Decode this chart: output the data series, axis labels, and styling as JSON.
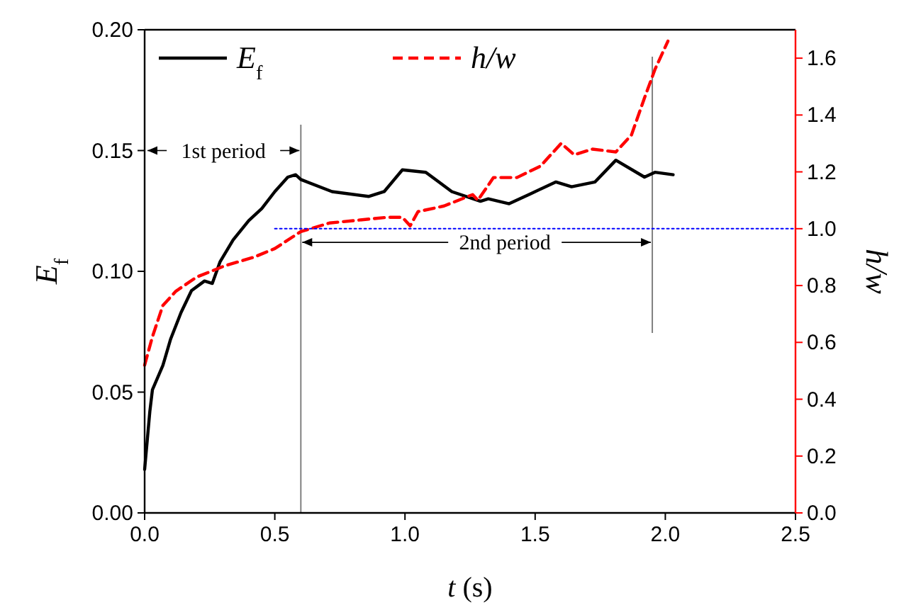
{
  "chart_data": {
    "type": "line",
    "xlabel": "t (s)",
    "ylabel": "E$_{f}$",
    "y2label": "h/w",
    "xlim": [
      0,
      2.5
    ],
    "xticks": [
      {
        "value": 0,
        "label": "0.0"
      },
      {
        "value": 0.5,
        "label": "0.5"
      },
      {
        "value": 1,
        "label": "1.0"
      },
      {
        "value": 1.5,
        "label": "1.5"
      },
      {
        "value": 2,
        "label": "2.0"
      },
      {
        "value": 2.5,
        "label": "2.5"
      }
    ],
    "ylim": [
      0,
      0.2
    ],
    "yticks": [
      {
        "value": 0,
        "label": "0.00"
      },
      {
        "value": 0.05,
        "label": "0.05"
      },
      {
        "value": 0.1,
        "label": "0.10"
      },
      {
        "value": 0.15,
        "label": "0.15"
      },
      {
        "value": 0.2,
        "label": "0.20"
      }
    ],
    "y2lim": [
      0,
      1.7
    ],
    "y2ticks": [
      {
        "value": 0,
        "label": "0.0"
      },
      {
        "value": 0.2,
        "label": "0.2"
      },
      {
        "value": 0.4,
        "label": "0.4"
      },
      {
        "value": 0.6,
        "label": "0.6"
      },
      {
        "value": 0.8,
        "label": "0.8"
      },
      {
        "value": 1,
        "label": "1.0"
      },
      {
        "value": 1.2,
        "label": "1.2"
      },
      {
        "value": 1.4,
        "label": "1.4"
      },
      {
        "value": 1.6,
        "label": "1.6"
      }
    ],
    "legend": "top left",
    "grid": false,
    "series": [
      {
        "name": "E$_{f}$",
        "color": "#000000",
        "line_style": "solid",
        "x": [
          0.0,
          0.01,
          0.02,
          0.03,
          0.07,
          0.1,
          0.14,
          0.18,
          0.23,
          0.26,
          0.29,
          0.34,
          0.4,
          0.45,
          0.5,
          0.55,
          0.58,
          0.6,
          0.72,
          0.86,
          0.92,
          0.99,
          1.08,
          1.18,
          1.29,
          1.32,
          1.4,
          1.48,
          1.58,
          1.64,
          1.73,
          1.81,
          1.92,
          1.96,
          2.03
        ],
        "values": [
          0.018,
          0.03,
          0.042,
          0.051,
          0.061,
          0.072,
          0.083,
          0.092,
          0.096,
          0.095,
          0.104,
          0.113,
          0.121,
          0.126,
          0.133,
          0.139,
          0.14,
          0.138,
          0.133,
          0.131,
          0.133,
          0.142,
          0.141,
          0.133,
          0.129,
          0.13,
          0.128,
          0.132,
          0.137,
          0.135,
          0.137,
          0.146,
          0.139,
          0.141,
          0.14
        ]
      },
      {
        "name": "h/w",
        "color": "#ff0000",
        "axis": "y2",
        "line_style": "dashed",
        "x": [
          0.0,
          0.03,
          0.07,
          0.12,
          0.2,
          0.31,
          0.42,
          0.5,
          0.6,
          0.71,
          0.82,
          0.93,
          0.99,
          1.02,
          1.05,
          1.15,
          1.26,
          1.28,
          1.34,
          1.43,
          1.52,
          1.6,
          1.65,
          1.72,
          1.81,
          1.87,
          1.92,
          1.96,
          2.01
        ],
        "values": [
          0.52,
          0.62,
          0.73,
          0.78,
          0.83,
          0.87,
          0.9,
          0.93,
          0.99,
          1.02,
          1.03,
          1.04,
          1.04,
          1.01,
          1.06,
          1.08,
          1.12,
          1.1,
          1.18,
          1.18,
          1.22,
          1.3,
          1.26,
          1.28,
          1.27,
          1.33,
          1.46,
          1.56,
          1.66
        ]
      },
      {
        "color": "#0000ff",
        "axis": "y2",
        "line_style": "dotted",
        "x": [
          0.5,
          2.5
        ],
        "values": [
          1.0,
          1.0
        ]
      }
    ],
    "ref_lines": [
      {
        "axis": "x",
        "value": 0.6,
        "color": "#808080"
      },
      {
        "axis": "x",
        "value": 1.95,
        "color": "#808080"
      }
    ],
    "annotations": [
      "1st period",
      {
        "text": "2nd period",
        "x": 0.6,
        "y": 0.112
      }
    ]
  }
}
